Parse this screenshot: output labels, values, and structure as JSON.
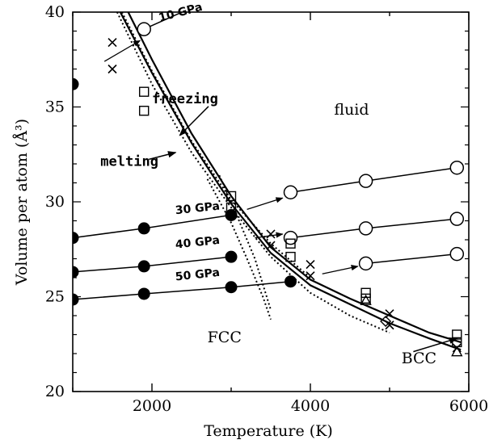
{
  "chart_data": {
    "type": "line",
    "title": "",
    "xlabel": "Temperature (K)",
    "ylabel": "Volume per atom (Å³)",
    "xlim": [
      1000,
      6000
    ],
    "ylim": [
      20,
      40
    ],
    "xticks": [
      2000,
      4000,
      6000
    ],
    "yticks": [
      20,
      25,
      30,
      35,
      40
    ],
    "grid": false,
    "legend": "none",
    "isobars": [
      {
        "label": "10 GPa",
        "solid": [
          [
            1000,
            36.2
          ]
        ],
        "fluid": [
          [
            1900,
            39.1
          ],
          [
            2700,
            40.6
          ]
        ]
      },
      {
        "label": "30 GPa",
        "solid": [
          [
            1000,
            28.1
          ],
          [
            1900,
            28.6
          ],
          [
            3000,
            29.3
          ]
        ],
        "fluid": [
          [
            3750,
            30.5
          ],
          [
            4700,
            31.1
          ],
          [
            5850,
            31.8
          ]
        ]
      },
      {
        "label": "40 GPa",
        "solid": [
          [
            1000,
            26.3
          ],
          [
            1900,
            26.6
          ],
          [
            3000,
            27.1
          ]
        ],
        "fluid": [
          [
            3750,
            28.1
          ],
          [
            4700,
            28.6
          ],
          [
            5850,
            29.1
          ]
        ]
      },
      {
        "label": "50 GPa",
        "solid": [
          [
            1000,
            24.85
          ],
          [
            1900,
            25.15
          ],
          [
            3000,
            25.5
          ],
          [
            3750,
            25.8
          ]
        ],
        "fluid": [
          [
            4700,
            26.75
          ],
          [
            5850,
            27.25
          ]
        ]
      }
    ],
    "phase_arrows": [
      {
        "from": [
          1400,
          37.4
        ],
        "to": [
          1850,
          38.5
        ]
      },
      {
        "from": [
          3200,
          29.6
        ],
        "to": [
          3650,
          30.2
        ]
      },
      {
        "from": [
          3300,
          28.1
        ],
        "to": [
          3650,
          28.3
        ]
      },
      {
        "from": [
          4150,
          26.2
        ],
        "to": [
          4600,
          26.6
        ]
      }
    ],
    "curves": {
      "freezing_line": [
        [
          1700,
          40
        ],
        [
          2000,
          37.5
        ],
        [
          2500,
          33.6
        ],
        [
          3000,
          30.3
        ],
        [
          3500,
          27.6
        ],
        [
          4000,
          25.9
        ],
        [
          4500,
          24.9
        ],
        [
          5000,
          24.0
        ],
        [
          5500,
          23.1
        ],
        [
          5900,
          22.6
        ]
      ],
      "melting_line": [
        [
          1600,
          40
        ],
        [
          2000,
          36.8
        ],
        [
          2500,
          33.1
        ],
        [
          3000,
          29.9
        ],
        [
          3500,
          27.3
        ],
        [
          4000,
          25.6
        ],
        [
          4500,
          24.6
        ],
        [
          5000,
          23.6
        ],
        [
          5500,
          22.8
        ],
        [
          5900,
          22.2
        ]
      ],
      "dotted_boundaries": [
        [
          [
            1560,
            40
          ],
          [
            2000,
            36.2
          ],
          [
            2500,
            32.6
          ],
          [
            3000,
            29.7
          ],
          [
            3500,
            27.1
          ],
          [
            4000,
            25.2
          ],
          [
            4500,
            24.0
          ],
          [
            5000,
            23.1
          ]
        ],
        [
          [
            1620,
            40
          ],
          [
            2000,
            36.9
          ],
          [
            2500,
            33.2
          ],
          [
            3000,
            30.1
          ],
          [
            3500,
            27.8
          ],
          [
            4000,
            26.0
          ]
        ],
        [
          [
            2700,
            31.2
          ],
          [
            3000,
            28.9
          ],
          [
            3200,
            27.0
          ],
          [
            3400,
            25.0
          ],
          [
            3500,
            23.8
          ]
        ],
        [
          [
            2850,
            31.4
          ],
          [
            3100,
            29.0
          ],
          [
            3300,
            27.0
          ],
          [
            3500,
            24.3
          ]
        ]
      ]
    },
    "markers": {
      "squares": [
        [
          1900,
          35.8
        ],
        [
          1900,
          34.8
        ],
        [
          3000,
          30.3
        ],
        [
          3000,
          29.7
        ],
        [
          3750,
          27.8
        ],
        [
          3750,
          27.1
        ],
        [
          4700,
          25.2
        ],
        [
          4700,
          24.9
        ],
        [
          5850,
          23.0
        ],
        [
          5850,
          22.6
        ]
      ],
      "crosses": [
        [
          1500,
          38.4
        ],
        [
          1500,
          37.0
        ],
        [
          3500,
          28.3
        ],
        [
          3500,
          27.7
        ],
        [
          4000,
          26.7
        ],
        [
          4000,
          26.1
        ],
        [
          5000,
          24.1
        ],
        [
          5000,
          23.5
        ],
        [
          5850,
          22.3
        ]
      ],
      "triangles": [
        [
          4700,
          24.8
        ],
        [
          5850,
          22.1
        ]
      ],
      "diamonds": [
        [
          4950,
          23.7
        ]
      ]
    },
    "annotations": [
      {
        "text": "fluid",
        "x": 4300,
        "y": 34.6,
        "style": "plain"
      },
      {
        "text": "FCC",
        "x": 2700,
        "y": 22.6,
        "style": "plain"
      },
      {
        "text": "BCC",
        "x": 5150,
        "y": 21.5,
        "style": "plain"
      },
      {
        "text": "freezing",
        "x": 2000,
        "y": 35.2,
        "style": "bold",
        "arrow_to": [
          2350,
          33.5
        ]
      },
      {
        "text": "melting",
        "x": 1350,
        "y": 31.9,
        "style": "bold",
        "arrow_to": [
          2300,
          32.6
        ]
      },
      {
        "text": "BCC arrow",
        "x": 5300,
        "y": 22.1,
        "style": "none",
        "arrow_to": [
          5850,
          22.8
        ]
      },
      {
        "text": "10 GPa",
        "x": 2100,
        "y": 39.5,
        "style": "small",
        "rotate": -15
      },
      {
        "text": "30 GPa",
        "x": 2300,
        "y": 29.35,
        "style": "small",
        "rotate": -6
      },
      {
        "text": "40 GPa",
        "x": 2300,
        "y": 27.55,
        "style": "small",
        "rotate": -6
      },
      {
        "text": "50 GPa",
        "x": 2300,
        "y": 25.85,
        "style": "small",
        "rotate": -6
      }
    ]
  }
}
